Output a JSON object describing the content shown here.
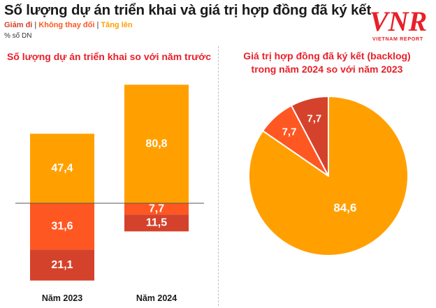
{
  "header": {
    "title": "Số lượng dự án triển khai và giá trị hợp đồng đã ký kết",
    "legend": [
      {
        "label": "Giảm đi",
        "color": "#d5422b"
      },
      {
        "label": "Không thay đổi",
        "color": "#ff5722"
      },
      {
        "label": "Tăng lên",
        "color": "#ffa000"
      }
    ],
    "unit": "% số DN"
  },
  "logo": {
    "mark": "VNR",
    "text": "VIETNAM REPORT",
    "color": "#e8202a"
  },
  "colors": {
    "decrease": "#d5422b",
    "unchanged": "#ff5722",
    "increase": "#ffa000",
    "accent": "#e8202a"
  },
  "chart_data": [
    {
      "type": "bar",
      "title": "Số lượng dự án triển khai so với năm trước",
      "categories": [
        "Năm 2023",
        "Năm 2024"
      ],
      "series": [
        {
          "name": "Tăng lên",
          "values": [
            47.4,
            80.8
          ],
          "labels": [
            "47,4",
            "80,8"
          ]
        },
        {
          "name": "Không thay đổi",
          "values": [
            31.6,
            7.7
          ],
          "labels": [
            "31,6",
            "7,7"
          ]
        },
        {
          "name": "Giảm đi",
          "values": [
            21.1,
            11.5
          ],
          "labels": [
            "21,1",
            "11,5"
          ]
        }
      ]
    },
    {
      "type": "pie",
      "title": "Giá trị hợp đồng đã ký kết (backlog) trong năm 2024 so với năm 2023",
      "title_lines": [
        "Giá trị hợp đồng đã ký kết (backlog)",
        "trong năm 2024 so với năm 2023"
      ],
      "slices": [
        {
          "name": "Tăng lên",
          "value": 84.6,
          "label": "84,6"
        },
        {
          "name": "Không thay đổi",
          "value": 7.7,
          "label": "7,7"
        },
        {
          "name": "Giảm đi",
          "value": 7.7,
          "label": "7,7"
        }
      ]
    }
  ]
}
